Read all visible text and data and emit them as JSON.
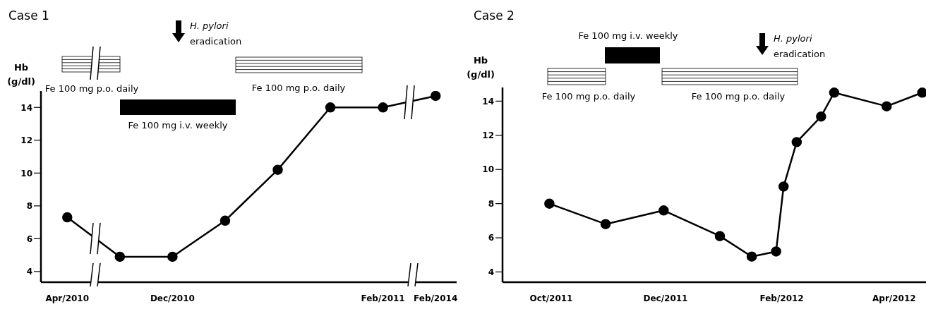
{
  "chart_data": [
    {
      "type": "line",
      "title": "Case 1",
      "ylabel": "Hb (g/dl)",
      "color": "#000000",
      "marker": "circle",
      "line_style": "solid",
      "categories": [
        "Apr/2010",
        null,
        "Dec/2010",
        null,
        null,
        null,
        "Feb/2011",
        "Feb/2014"
      ],
      "values": [
        7.3,
        4.9,
        4.9,
        7.1,
        10.2,
        14.0,
        14.0,
        14.7
      ],
      "ylim": [
        3.35,
        15
      ],
      "yticks": [
        4,
        6,
        8,
        10,
        12,
        14
      ],
      "annotations": [
        "H. pylori eradication",
        "Fe 100 mg p.o. daily",
        "Fe 100 mg p.o. daily",
        "Fe 100 mg i.v. weekly"
      ]
    },
    {
      "type": "line",
      "title": "Case 2",
      "ylabel": "Hb (g/dl)",
      "color": "#000000",
      "marker": "circle",
      "line_style": "solid",
      "x": [
        "2011-09-30",
        "2011-10-30",
        "2011-11-30",
        "2011-12-30",
        "2012-01-16",
        "2012-01-29",
        "2012-02-02",
        "2012-02-09",
        "2012-02-22",
        "2012-02-29",
        "2012-03-28",
        "2012-04-16"
      ],
      "values": [
        8.0,
        6.8,
        7.6,
        6.1,
        4.9,
        5.2,
        9.0,
        11.6,
        13.1,
        14.5,
        13.7,
        14.5
      ],
      "xlim": [
        "2011-09-05",
        "2012-04-18"
      ],
      "xticks": [
        {
          "value": "2011-10-01",
          "label": "Oct/2011"
        },
        {
          "value": "2011-12-01",
          "label": "Dec/2011"
        },
        {
          "value": "2012-02-01",
          "label": "Feb/2012"
        },
        {
          "value": "2012-04-01",
          "label": "Apr/2012"
        }
      ],
      "ylim": [
        3.4,
        14.8
      ],
      "yticks": [
        4,
        6,
        8,
        10,
        12,
        14
      ],
      "annotations": [
        "Fe 100 mg i.v. weekly",
        "H. pylori eradication",
        "Fe 100 mg p.o. daily",
        "Fe 100 mg p.o. daily"
      ]
    }
  ]
}
